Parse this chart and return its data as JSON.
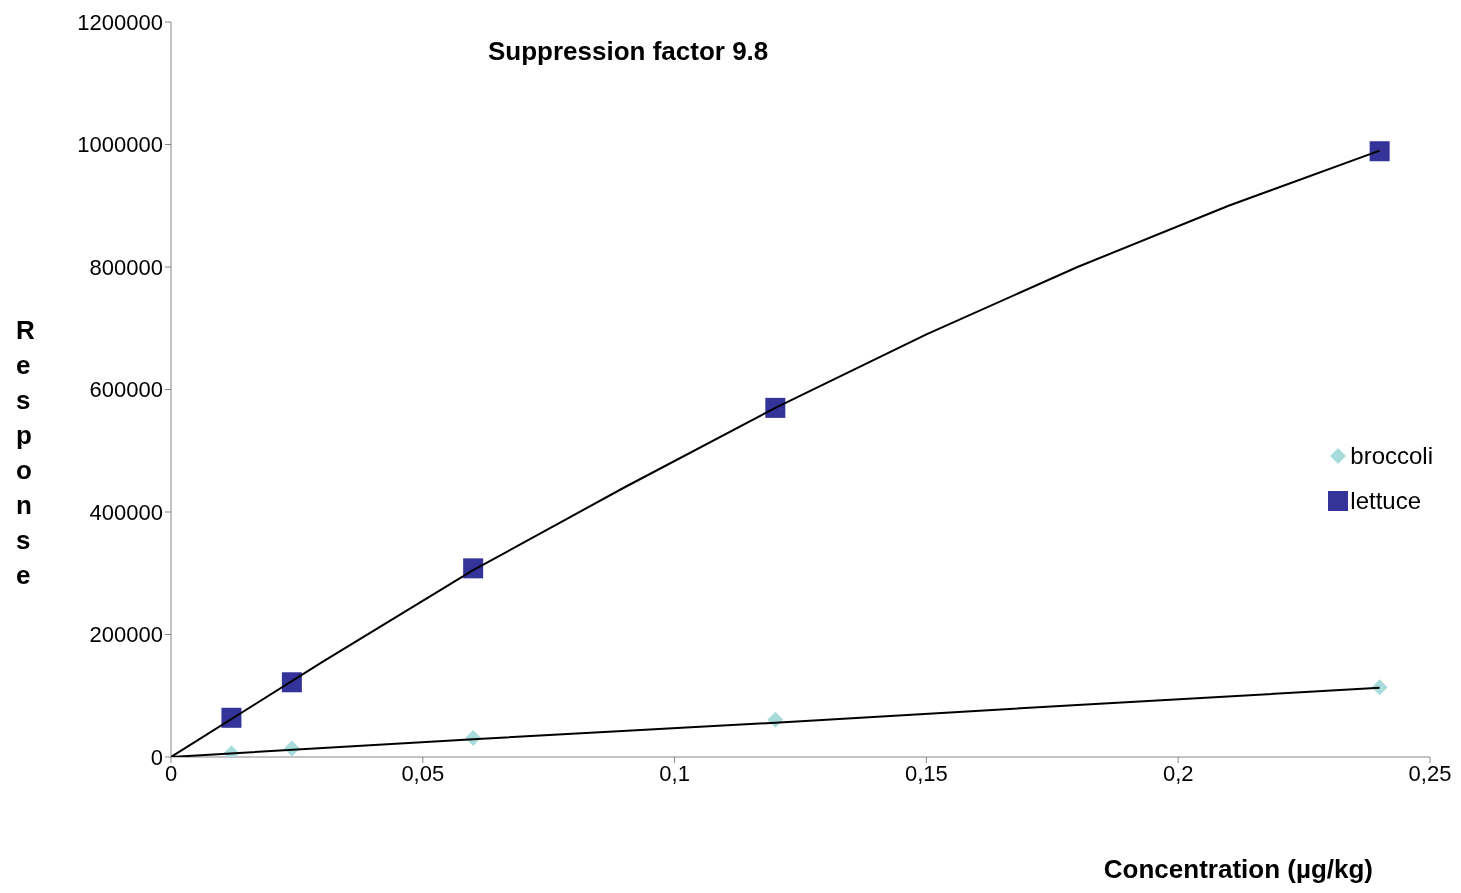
{
  "chart_data": {
    "type": "scatter",
    "title": "Suppression factor 9.8",
    "xlabel": "Concentration (µg/kg)",
    "ylabel": "Response",
    "xlim": [
      0,
      0.25
    ],
    "xticks": [
      0,
      {
        "value": 0.05,
        "label": "0,05"
      },
      {
        "value": 0.1,
        "label": "0,1"
      },
      {
        "value": 0.15,
        "label": "0,15"
      },
      {
        "value": 0.2,
        "label": "0,2"
      },
      {
        "value": 0.25,
        "label": "0,25"
      }
    ],
    "ylim": [
      0,
      1200000
    ],
    "yticks": [
      0,
      200000,
      400000,
      600000,
      800000,
      1000000,
      1200000
    ],
    "grid": false,
    "legend": "right",
    "series": [
      {
        "name": "broccoli",
        "color": "#a8dcdc",
        "marker": "diamond",
        "x": [
          0.012,
          0.024,
          0.06,
          0.12,
          0.24
        ],
        "values": [
          6000,
          14000,
          31000,
          61000,
          114000
        ]
      },
      {
        "name": "lettuce",
        "color": "#333399",
        "marker": "square",
        "x": [
          0.012,
          0.024,
          0.06,
          0.12,
          0.24
        ],
        "values": [
          64000,
          122000,
          308000,
          570000,
          989000
        ]
      },
      {
        "type": "line",
        "color": "#000000",
        "marker": "none",
        "x": [
          0,
          0.06,
          0.12,
          0.18,
          0.24
        ],
        "values": [
          0,
          29000,
          56000,
          85000,
          113000
        ]
      },
      {
        "type": "line",
        "color": "#000000",
        "marker": "none",
        "x": [
          0,
          0.03,
          0.06,
          0.09,
          0.12,
          0.15,
          0.18,
          0.21,
          0.24
        ],
        "values": [
          0,
          155000,
          305000,
          440000,
          570000,
          690000,
          800000,
          900000,
          990000
        ]
      }
    ]
  }
}
